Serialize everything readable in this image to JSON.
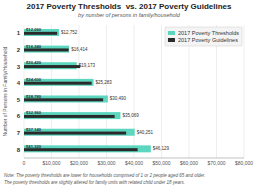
{
  "chart_data": {
    "type": "bar",
    "orientation": "horizontal",
    "title": "2017 Poverty Thresholds  vs. 2017 Poverty Guidelines",
    "subtitle": "by number of persons in family/household",
    "ylabel": "Number of Persons in Family/Household",
    "annotations": [
      "Note: The poverty thresholds are lower for households comprised of 1 or 2 people aged 65 and older.",
      "The poverty thresholds are slightly altered for family units with related child under 18 years."
    ],
    "categories": [
      "1",
      "2",
      "3",
      "4",
      "5",
      "6",
      "7",
      "8"
    ],
    "series": [
      {
        "name": "2017 Poverty Thresholds",
        "color": "#5dd6bf",
        "values": [
          12752,
          16414,
          19173,
          25283,
          30490,
          35069,
          40251,
          46129
        ],
        "value_labels": [
          "$12,752",
          "$16,414",
          "$19,173",
          "$25,283",
          "$30,490",
          "$35,069",
          "$40,251",
          "$46,129"
        ]
      },
      {
        "name": "2017 Poverty Guidelines",
        "color": "#2a2a2a",
        "values": [
          12060,
          16240,
          20420,
          24600,
          28780,
          32960,
          37140,
          41320
        ],
        "value_labels": [
          "$12,060",
          "$16,240",
          "$20,420",
          "$24,600",
          "$28,780",
          "$32,960",
          "$37,140",
          "$41,320"
        ]
      }
    ],
    "xlim": [
      0,
      80000
    ],
    "xticks": [
      0,
      {
        "value": 10000,
        "label": "$10,000"
      },
      {
        "value": 20000,
        "label": "$20,000"
      },
      {
        "value": 30000,
        "label": "$30,000"
      },
      {
        "value": 40000,
        "label": "$40,000"
      },
      {
        "value": 50000,
        "label": "$50,000"
      },
      {
        "value": 60000,
        "label": "$60,000"
      },
      {
        "value": 70000,
        "label": "$70,000"
      },
      {
        "value": 80000,
        "label": "$80,000"
      }
    ],
    "grid": true,
    "legend": "upper right",
    "data_labels": true
  }
}
